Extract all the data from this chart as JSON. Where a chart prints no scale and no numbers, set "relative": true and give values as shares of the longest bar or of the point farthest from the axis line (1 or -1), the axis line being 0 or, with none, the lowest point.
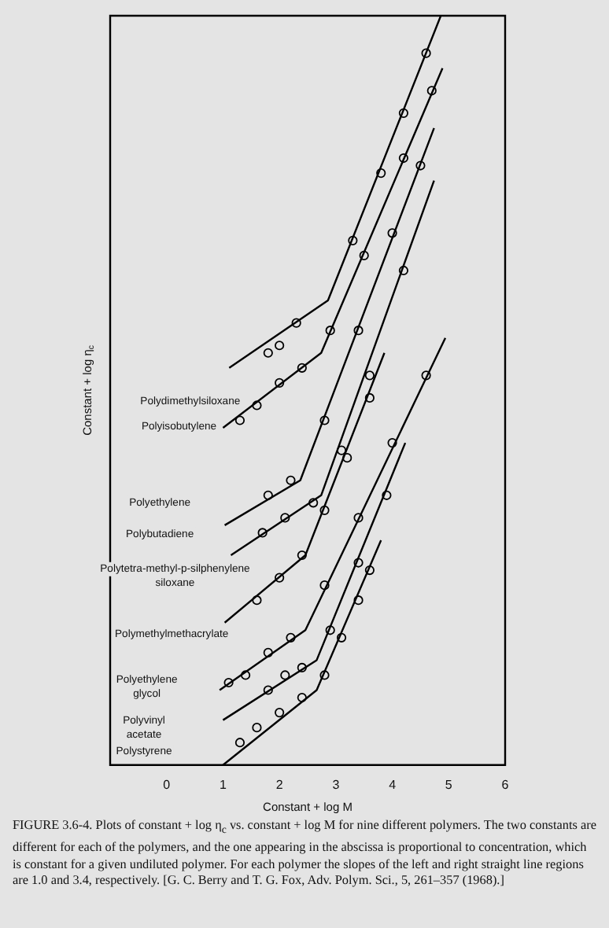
{
  "chart_data": {
    "type": "line",
    "relative": true,
    "xlabel": "Constant + log M",
    "ylabel": "Constant + log η$_{c}$",
    "xlim": [
      -1,
      6
    ],
    "xticks": [
      0,
      1,
      2,
      3,
      4,
      5,
      6
    ],
    "tick_labels": "x",
    "grid": false,
    "legend": false,
    "line_style": "solid",
    "series": [
      {
        "color": "#000000",
        "x": [
          1.11,
          2.86,
          4.86
        ],
        "values": [
          0.53,
          0.62,
          1.0
        ]
      },
      {
        "color": "#000000",
        "x": [
          1.0,
          2.74,
          4.89
        ],
        "values": [
          0.45,
          0.55,
          0.93
        ]
      },
      {
        "color": "#000000",
        "x": [
          1.03,
          2.37,
          4.74
        ],
        "values": [
          0.32,
          0.38,
          0.85
        ]
      },
      {
        "color": "#000000",
        "x": [
          1.14,
          2.74,
          4.74
        ],
        "values": [
          0.28,
          0.36,
          0.78
        ]
      },
      {
        "color": "#000000",
        "x": [
          1.03,
          2.46,
          3.86
        ],
        "values": [
          0.19,
          0.28,
          0.55
        ]
      },
      {
        "color": "#000000",
        "x": [
          0.94,
          2.46,
          4.94
        ],
        "values": [
          0.1,
          0.18,
          0.57
        ]
      },
      {
        "color": "#000000",
        "x": [
          1.0,
          2.66,
          4.23
        ],
        "values": [
          0.06,
          0.14,
          0.43
        ]
      },
      {
        "color": "#000000",
        "x": [
          1.0,
          2.66,
          3.8
        ],
        "values": [
          0.0,
          0.1,
          0.3
        ]
      },
      {
        "type": "scatter",
        "marker": "circle",
        "color": "#000000",
        "x": [
          1.8,
          2.0,
          2.3,
          3.3,
          3.8,
          4.2,
          4.6
        ],
        "values": [
          0.55,
          0.56,
          0.59,
          0.7,
          0.79,
          0.87,
          0.95
        ]
      },
      {
        "type": "scatter",
        "marker": "circle",
        "color": "#000000",
        "x": [
          1.3,
          1.6,
          2.0,
          2.4,
          2.9,
          3.5,
          4.2,
          4.7
        ],
        "values": [
          0.46,
          0.48,
          0.51,
          0.53,
          0.58,
          0.68,
          0.81,
          0.9
        ]
      },
      {
        "type": "scatter",
        "marker": "circle",
        "color": "#000000",
        "x": [
          1.8,
          2.2,
          2.8,
          3.4,
          4.0,
          4.5
        ],
        "values": [
          0.36,
          0.38,
          0.46,
          0.58,
          0.71,
          0.8
        ]
      },
      {
        "type": "scatter",
        "marker": "circle",
        "color": "#000000",
        "x": [
          1.7,
          2.1,
          2.6,
          3.1,
          3.6,
          4.2
        ],
        "values": [
          0.31,
          0.33,
          0.35,
          0.42,
          0.52,
          0.66
        ]
      },
      {
        "type": "scatter",
        "marker": "circle",
        "color": "#000000",
        "x": [
          1.6,
          2.0,
          2.4,
          2.8,
          3.2,
          3.6
        ],
        "values": [
          0.22,
          0.25,
          0.28,
          0.34,
          0.41,
          0.49
        ]
      },
      {
        "type": "scatter",
        "marker": "circle",
        "color": "#000000",
        "x": [
          1.1,
          1.4,
          1.8,
          2.2,
          2.8,
          3.4,
          4.0,
          4.6
        ],
        "values": [
          0.11,
          0.12,
          0.15,
          0.17,
          0.24,
          0.33,
          0.43,
          0.52
        ]
      },
      {
        "type": "scatter",
        "marker": "circle",
        "color": "#000000",
        "x": [
          1.8,
          2.1,
          2.4,
          2.9,
          3.4,
          3.9
        ],
        "values": [
          0.1,
          0.12,
          0.13,
          0.18,
          0.27,
          0.36
        ]
      },
      {
        "type": "scatter",
        "marker": "circle",
        "color": "#000000",
        "x": [
          1.3,
          1.6,
          2.0,
          2.4,
          2.8,
          3.1,
          3.4,
          3.6
        ],
        "values": [
          0.03,
          0.05,
          0.07,
          0.09,
          0.12,
          0.17,
          0.22,
          0.26
        ]
      }
    ],
    "annotations": [
      "Polydimethylsiloxane",
      "Polyisobutylene",
      "Polyethylene",
      "Polybutadiene",
      "Polytetra-methyl-p-silphenylene\nsiloxane",
      "Polymethylmethacrylate",
      "Polyethylene\nglycol",
      "Polyvinyl\nacetate",
      "Polystyrene",
      "FIGURE 3.6-4. Plots of constant + log η$_{c}$ vs. constant + log M for nine different polymers. The two constants are different for each of the polymers, and the one appearing in the abscissa is proportional to concentration, which is constant for a given undiluted polymer. For each polymer the slopes of the left and right straight line regions are 1.0 and 3.4, respectively. [G. C. Berry and T. G. Fox, Adv. Polym. Sci., 5, 261–357 (1968).]"
    ]
  }
}
